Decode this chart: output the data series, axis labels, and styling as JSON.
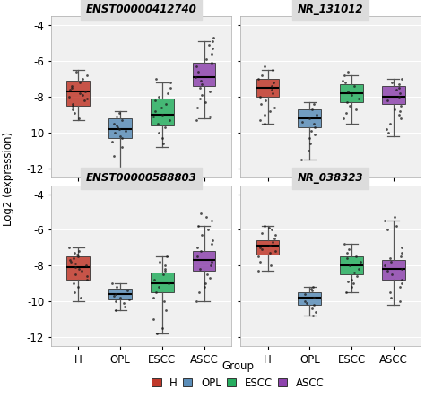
{
  "panels": [
    {
      "title": "ENST00000412740",
      "groups": [
        "H",
        "OPL",
        "ESCC",
        "ASCC"
      ],
      "box_data": {
        "H": {
          "q1": -8.5,
          "median": -7.7,
          "q3": -7.1,
          "whislo": -9.3,
          "whishi": -6.5
        },
        "OPL": {
          "q1": -10.3,
          "median": -9.8,
          "q3": -9.2,
          "whislo": -12.0,
          "whishi": -8.8
        },
        "ESCC": {
          "q1": -9.6,
          "median": -9.0,
          "q3": -8.1,
          "whislo": -10.8,
          "whishi": -7.2
        },
        "ASCC": {
          "q1": -7.4,
          "median": -6.9,
          "q3": -6.1,
          "whislo": -9.2,
          "whishi": -4.9
        }
      },
      "scatter": {
        "H": [
          -6.6,
          -6.8,
          -7.0,
          -7.2,
          -7.4,
          -7.5,
          -7.6,
          -7.7,
          -7.8,
          -7.9,
          -8.0,
          -8.1,
          -8.2,
          -8.4,
          -8.5,
          -8.7,
          -8.9,
          -9.2
        ],
        "OPL": [
          -8.9,
          -9.1,
          -9.3,
          -9.5,
          -9.6,
          -9.7,
          -9.8,
          -9.9,
          -10.0,
          -10.2,
          -10.3,
          -10.5,
          -10.8,
          -11.3,
          -12.0
        ],
        "ESCC": [
          -7.2,
          -7.5,
          -7.8,
          -8.0,
          -8.2,
          -8.4,
          -8.6,
          -8.8,
          -9.0,
          -9.1,
          -9.3,
          -9.5,
          -9.7,
          -10.0,
          -10.3,
          -10.6,
          -7.0
        ],
        "ASCC": [
          -4.9,
          -5.1,
          -5.3,
          -5.6,
          -5.9,
          -6.1,
          -6.3,
          -6.6,
          -6.9,
          -7.1,
          -7.3,
          -7.5,
          -7.7,
          -7.9,
          -8.1,
          -8.3,
          -8.6,
          -9.1,
          -9.3,
          -4.7
        ]
      }
    },
    {
      "title": "NR_131012",
      "groups": [
        "H",
        "OPL",
        "ESCC",
        "ASCC"
      ],
      "box_data": {
        "H": {
          "q1": -8.0,
          "median": -7.5,
          "q3": -7.0,
          "whislo": -9.5,
          "whishi": -6.5
        },
        "OPL": {
          "q1": -9.7,
          "median": -9.2,
          "q3": -8.7,
          "whislo": -11.5,
          "whishi": -8.3
        },
        "ESCC": {
          "q1": -8.3,
          "median": -7.8,
          "q3": -7.3,
          "whislo": -9.5,
          "whishi": -6.8
        },
        "ASCC": {
          "q1": -8.4,
          "median": -8.0,
          "q3": -7.4,
          "whislo": -10.2,
          "whishi": -7.0
        }
      },
      "scatter": {
        "H": [
          -6.5,
          -6.8,
          -7.0,
          -7.2,
          -7.4,
          -7.6,
          -7.8,
          -8.0,
          -8.2,
          -8.4,
          -8.6,
          -8.8,
          -9.0,
          -9.3,
          -9.5,
          -6.3
        ],
        "OPL": [
          -8.4,
          -8.7,
          -9.0,
          -9.2,
          -9.4,
          -9.5,
          -9.7,
          -9.9,
          -10.1,
          -10.3,
          -10.6,
          -11.0,
          -11.5
        ],
        "ESCC": [
          -6.8,
          -7.1,
          -7.4,
          -7.7,
          -7.9,
          -8.1,
          -8.3,
          -8.5,
          -8.7,
          -8.9,
          -9.2,
          -6.6,
          -7.2
        ],
        "ASCC": [
          -7.0,
          -7.3,
          -7.6,
          -7.8,
          -8.0,
          -8.2,
          -8.5,
          -8.7,
          -9.0,
          -9.2,
          -9.5,
          -9.8,
          -10.0,
          -7.2,
          -7.5,
          -8.8
        ]
      }
    },
    {
      "title": "ENST00000588803",
      "groups": [
        "H",
        "OPL",
        "ESCC",
        "ASCC"
      ],
      "box_data": {
        "H": {
          "q1": -8.8,
          "median": -8.1,
          "q3": -7.5,
          "whislo": -10.0,
          "whishi": -7.0
        },
        "OPL": {
          "q1": -9.9,
          "median": -9.6,
          "q3": -9.3,
          "whislo": -10.5,
          "whishi": -9.0
        },
        "ESCC": {
          "q1": -9.5,
          "median": -9.0,
          "q3": -8.4,
          "whislo": -11.8,
          "whishi": -7.5
        },
        "ASCC": {
          "q1": -8.3,
          "median": -7.7,
          "q3": -7.2,
          "whislo": -10.0,
          "whishi": -5.8
        }
      },
      "scatter": {
        "H": [
          -7.0,
          -7.2,
          -7.4,
          -7.6,
          -7.8,
          -7.9,
          -8.0,
          -8.1,
          -8.2,
          -8.3,
          -8.5,
          -8.6,
          -8.8,
          -9.0,
          -9.2,
          -9.5,
          -7.3,
          -7.7,
          -9.8,
          -7.5
        ],
        "OPL": [
          -9.0,
          -9.2,
          -9.4,
          -9.6,
          -9.7,
          -9.8,
          -9.9,
          -10.0,
          -10.1,
          -10.3,
          -10.5
        ],
        "ESCC": [
          -7.5,
          -7.8,
          -8.0,
          -8.3,
          -8.5,
          -8.8,
          -9.0,
          -9.2,
          -9.5,
          -9.8,
          -10.0,
          -10.5,
          -11.0,
          -11.5,
          -11.8,
          -8.2
        ],
        "ASCC": [
          -5.8,
          -6.0,
          -6.3,
          -6.6,
          -7.0,
          -7.2,
          -7.5,
          -7.8,
          -8.0,
          -8.2,
          -8.5,
          -8.7,
          -9.0,
          -9.2,
          -9.5,
          -10.0,
          -5.5,
          -6.8,
          -5.3,
          -5.1
        ]
      }
    },
    {
      "title": "NR_038323",
      "groups": [
        "H",
        "OPL",
        "ESCC",
        "ASCC"
      ],
      "box_data": {
        "H": {
          "q1": -7.4,
          "median": -6.9,
          "q3": -6.6,
          "whislo": -8.3,
          "whishi": -5.8
        },
        "OPL": {
          "q1": -10.2,
          "median": -9.8,
          "q3": -9.5,
          "whislo": -10.8,
          "whishi": -9.2
        },
        "ESCC": {
          "q1": -8.5,
          "median": -8.0,
          "q3": -7.5,
          "whislo": -9.5,
          "whishi": -6.8
        },
        "ASCC": {
          "q1": -8.8,
          "median": -8.2,
          "q3": -7.7,
          "whislo": -10.2,
          "whishi": -5.5
        }
      },
      "scatter": {
        "H": [
          -5.8,
          -6.0,
          -6.3,
          -6.5,
          -6.7,
          -6.9,
          -7.0,
          -7.1,
          -7.2,
          -7.3,
          -7.5,
          -7.8,
          -8.0,
          -8.3,
          -6.2,
          -5.9
        ],
        "OPL": [
          -9.2,
          -9.4,
          -9.6,
          -9.8,
          -10.0,
          -10.1,
          -10.2,
          -10.4,
          -10.6,
          -10.8,
          -9.3
        ],
        "ESCC": [
          -6.8,
          -7.1,
          -7.3,
          -7.6,
          -7.8,
          -8.0,
          -8.2,
          -8.4,
          -8.6,
          -8.8,
          -9.0,
          -9.2,
          -9.5,
          -7.5,
          -8.9
        ],
        "ASCC": [
          -5.5,
          -5.8,
          -6.0,
          -7.0,
          -7.3,
          -7.5,
          -7.8,
          -8.0,
          -8.2,
          -8.5,
          -8.8,
          -9.0,
          -9.2,
          -9.5,
          -9.8,
          -10.0,
          -7.6,
          -8.3,
          -5.3
        ]
      }
    }
  ],
  "colors": {
    "H": "#C0392B",
    "OPL": "#5B8DB8",
    "ESCC": "#27AE60",
    "ASCC": "#8E44AD"
  },
  "ylim": [
    -12.5,
    -3.5
  ],
  "yticks": [
    -12,
    -10,
    -8,
    -6,
    -4
  ],
  "ylabel": "Log2 (expression)",
  "panel_bg": "#F0F0F0",
  "title_bg": "#DCDCDC",
  "legend_title": "Group"
}
